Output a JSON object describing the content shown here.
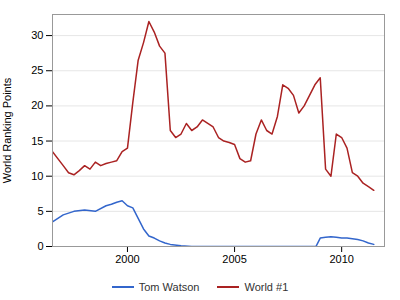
{
  "chart_data": {
    "type": "line",
    "ylabel": "World Ranking Points",
    "series": [
      {
        "name": "Tom Watson",
        "color": "#3366cc",
        "x": [
          1996.5,
          1997.0,
          1997.5,
          1998.0,
          1998.5,
          1999.0,
          1999.25,
          1999.5,
          1999.75,
          2000.0,
          2000.25,
          2000.5,
          2000.75,
          2001.0,
          2001.25,
          2001.5,
          2001.75,
          2002.0,
          2002.5,
          2003.0,
          2008.8,
          2009.0,
          2009.25,
          2009.5,
          2009.75,
          2010.0,
          2010.25,
          2010.5,
          2010.75,
          2011.0,
          2011.25,
          2011.5
        ],
        "values": [
          3.5,
          4.5,
          5.0,
          5.2,
          5.0,
          5.8,
          6.0,
          6.3,
          6.5,
          5.8,
          5.5,
          4.0,
          2.5,
          1.5,
          1.2,
          0.8,
          0.5,
          0.3,
          0.1,
          0.0,
          0.0,
          1.2,
          1.3,
          1.4,
          1.3,
          1.2,
          1.2,
          1.1,
          1.0,
          0.8,
          0.5,
          0.3
        ]
      },
      {
        "name": "World #1",
        "color": "#aa2222",
        "x": [
          1996.5,
          1997.0,
          1997.25,
          1997.5,
          1997.75,
          1998.0,
          1998.25,
          1998.5,
          1998.75,
          1999.0,
          1999.25,
          1999.5,
          1999.75,
          2000.0,
          2000.25,
          2000.5,
          2000.75,
          2001.0,
          2001.25,
          2001.5,
          2001.75,
          2002.0,
          2002.25,
          2002.5,
          2002.75,
          2003.0,
          2003.25,
          2003.5,
          2003.75,
          2004.0,
          2004.25,
          2004.5,
          2004.75,
          2005.0,
          2005.25,
          2005.5,
          2005.75,
          2006.0,
          2006.25,
          2006.5,
          2006.75,
          2007.0,
          2007.25,
          2007.5,
          2007.75,
          2008.0,
          2008.25,
          2008.5,
          2008.75,
          2009.0,
          2009.25,
          2009.5,
          2009.75,
          2010.0,
          2010.25,
          2010.5,
          2010.75,
          2011.0,
          2011.25,
          2011.5
        ],
        "values": [
          13.5,
          11.5,
          10.5,
          10.2,
          10.8,
          11.5,
          11.0,
          12.0,
          11.5,
          11.8,
          12.0,
          12.2,
          13.5,
          14.0,
          20.5,
          26.5,
          29.0,
          32.0,
          30.5,
          28.5,
          27.5,
          16.5,
          15.5,
          16.0,
          17.5,
          16.5,
          17.0,
          18.0,
          17.5,
          17.0,
          15.5,
          15.0,
          14.8,
          14.5,
          12.5,
          12.0,
          12.2,
          16.0,
          18.0,
          16.5,
          16.0,
          18.5,
          23.0,
          22.5,
          21.5,
          19.0,
          20.0,
          21.5,
          23.0,
          24.0,
          11.0,
          10.0,
          16.0,
          15.5,
          14.0,
          10.5,
          10.0,
          9.0,
          8.5,
          8.0
        ]
      }
    ],
    "xlim": [
      1996.5,
      2012.0
    ],
    "ylim": [
      0,
      33
    ],
    "xticks": [
      2000,
      2005,
      2010
    ],
    "yticks": [
      0,
      5,
      10,
      15,
      20,
      25,
      30
    ],
    "grid": true,
    "legend": "bottom"
  }
}
